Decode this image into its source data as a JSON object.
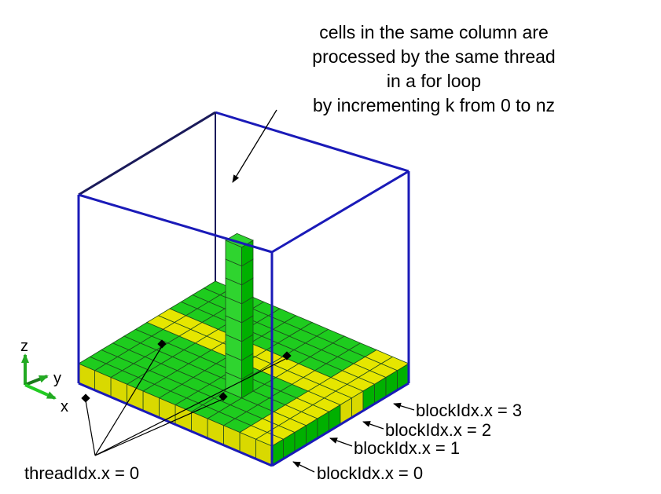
{
  "caption": {
    "line1": "cells in the same column are",
    "line2": "processed by the same thread",
    "line3": "in a for loop",
    "line4": "by incrementing k from 0 to nz"
  },
  "axes": {
    "z": "z",
    "y": "y",
    "x": "x"
  },
  "block_labels": {
    "b3": "blockIdx.x = 3",
    "b2": "blockIdx.x = 2",
    "b1": "blockIdx.x = 1",
    "b0": "blockIdx.x = 0"
  },
  "thread_label": "threadIdx.x = 0",
  "colors": {
    "yellow_top": "#e6e600",
    "yellow_side": "#d9d900",
    "green_top": "#1ecc1e",
    "green_side": "#00b000",
    "column": "#2fd42f",
    "grid_line": "#1e4a1e",
    "frame_blue": "#1a1ab8",
    "frame_back": "#1a1a5a"
  }
}
